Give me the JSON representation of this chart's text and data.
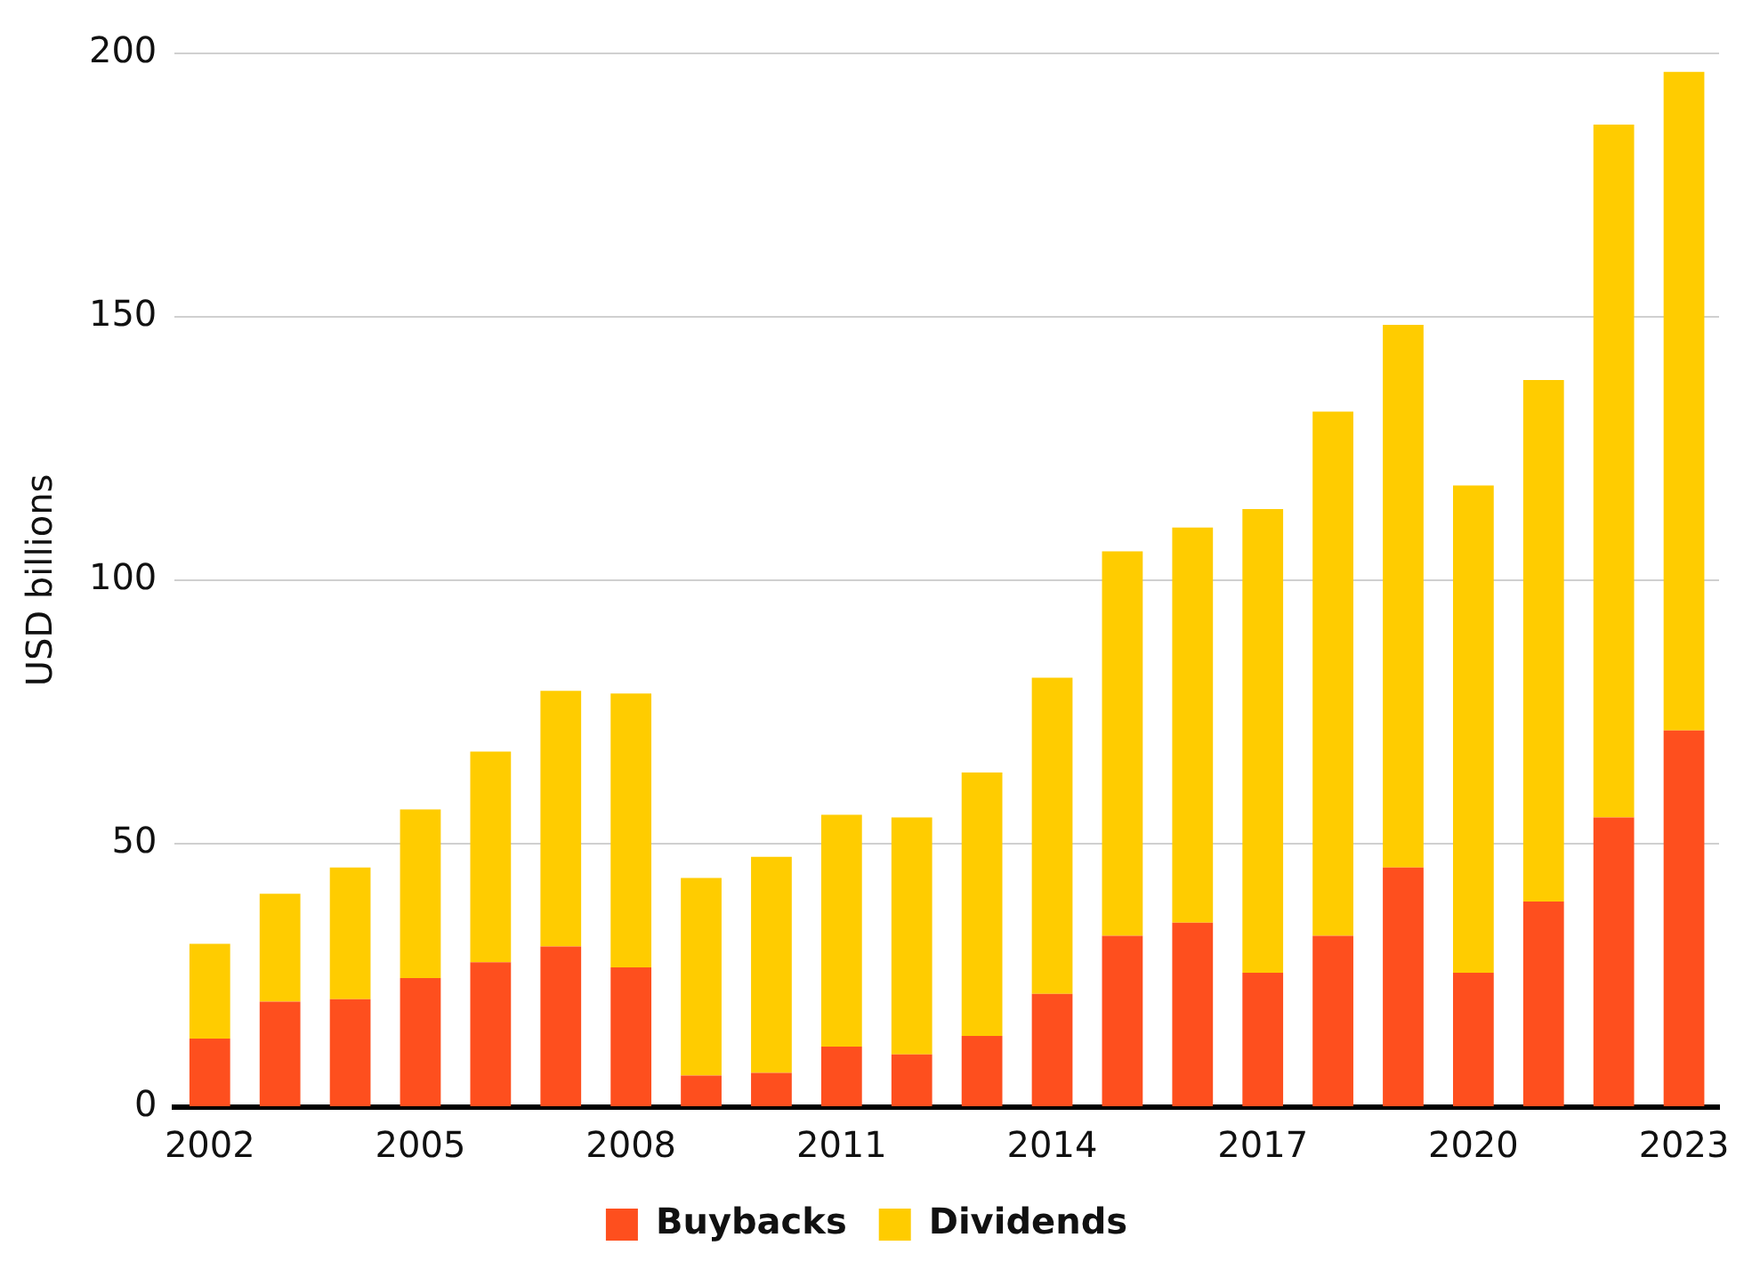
{
  "chart_data": {
    "type": "bar",
    "stacked": true,
    "ylabel": "USD billions",
    "categories": [
      "2002",
      null,
      null,
      "2005",
      null,
      null,
      "2008",
      null,
      null,
      "2011",
      null,
      null,
      "2014",
      null,
      null,
      "2017",
      null,
      null,
      "2020",
      null,
      null,
      "2023"
    ],
    "series": [
      {
        "name": "Buybacks",
        "color": "#fe4f1e",
        "values": [
          13,
          20,
          20.5,
          24.5,
          27.5,
          30.5,
          26.5,
          6,
          6.5,
          11.5,
          10,
          13.5,
          21.5,
          32.5,
          35,
          25.5,
          32.5,
          45.5,
          25.5,
          39,
          55,
          71.5
        ]
      },
      {
        "name": "Dividends",
        "color": "#ffcc00",
        "values": [
          18,
          20.5,
          25,
          32,
          40,
          48.5,
          52,
          37.5,
          41,
          44,
          45,
          50,
          60,
          73,
          75,
          88,
          99.5,
          103,
          92.5,
          99,
          131.5,
          125
        ]
      }
    ],
    "ylim": [
      0,
      200
    ],
    "yticks": [
      0,
      50,
      100,
      150,
      200
    ],
    "grid": "y",
    "legend": "bottom"
  }
}
